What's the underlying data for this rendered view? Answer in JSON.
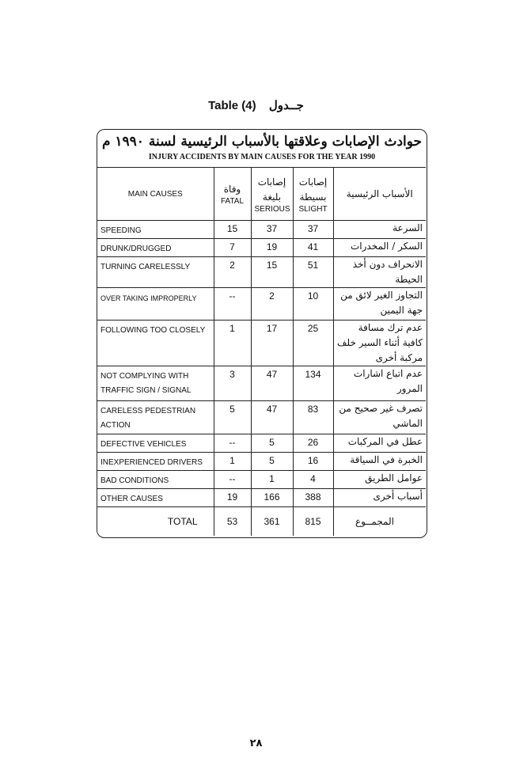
{
  "caption": {
    "en": "Table (4)",
    "ar": "جــدول"
  },
  "title": {
    "ar": "حوادث الإصابات وعلاقتها بالأسباب الرئيسية لسنة ١٩٩٠ م",
    "en": "INJURY ACCIDENTS BY MAIN CAUSES FOR THE YEAR 1990"
  },
  "headers": {
    "main_causes": "MAIN CAUSES",
    "fatal_ar": "وفاة",
    "fatal": "FATAL",
    "serious_ar": "إصابات بليغة",
    "serious": "SERIOUS",
    "slight_ar": "إصابات بسيطة",
    "slight": "SLIGHT",
    "main_causes_ar": "الأسباب الرئيسية"
  },
  "rows": [
    {
      "cause": "SPEEDING",
      "fatal": "15",
      "serious": "37",
      "slight": "37",
      "cause_ar": "السرعة",
      "h": 20
    },
    {
      "cause": "DRUNK/DRUGGED",
      "fatal": "7",
      "serious": "19",
      "slight": "41",
      "cause_ar": "السكر / المخدرات",
      "h": 20
    },
    {
      "cause": "TURNING CARELESSLY",
      "fatal": "2",
      "serious": "15",
      "slight": "51",
      "cause_ar": "الانحراف دون أخذ الحيطة",
      "h": 20
    },
    {
      "cause": "OVER TAKING IMPROPERLY",
      "fatal": "--",
      "serious": "2",
      "slight": "10",
      "cause_ar": "التجاوز الغير لائق من جهة اليمين",
      "h": 41,
      "small": true
    },
    {
      "cause": "FOLLOWING TOO CLOSELY",
      "fatal": "1",
      "serious": "17",
      "slight": "25",
      "cause_ar": "عدم ترك مسافة كافية أثناء السير خلف مركبة أخرى",
      "h": 43
    },
    {
      "cause": "NOT COMPLYING WITH TRAFFIC SIGN / SIGNAL",
      "fatal": "3",
      "serious": "47",
      "slight": "134",
      "cause_ar": "عدم اتباع اشارات المرور",
      "h": 44
    },
    {
      "cause": "CARELESS PEDESTRIAN ACTION",
      "fatal": "5",
      "serious": "47",
      "slight": "83",
      "cause_ar": "تصرف غير صحيح من الماشي",
      "h": 42
    },
    {
      "cause": "DEFECTIVE VEHICLES",
      "fatal": "--",
      "serious": "5",
      "slight": "26",
      "cause_ar": "عطل في المركبات",
      "h": 21
    },
    {
      "cause": "INEXPERIENCED DRIVERS",
      "fatal": "1",
      "serious": "5",
      "slight": "16",
      "cause_ar": "الخبرة في السياقة",
      "h": 20
    },
    {
      "cause": "BAD CONDITIONS",
      "fatal": "--",
      "serious": "1",
      "slight": "4",
      "cause_ar": "عوامل الطريق",
      "h": 20
    },
    {
      "cause": "OTHER CAUSES",
      "fatal": "19",
      "serious": "166",
      "slight": "388",
      "cause_ar": "أسباب أخرى",
      "h": 23
    }
  ],
  "total": {
    "label": "TOTAL",
    "fatal": "53",
    "serious": "361",
    "slight": "815",
    "label_ar": "المجمــوع"
  },
  "page_number": "٢٨"
}
